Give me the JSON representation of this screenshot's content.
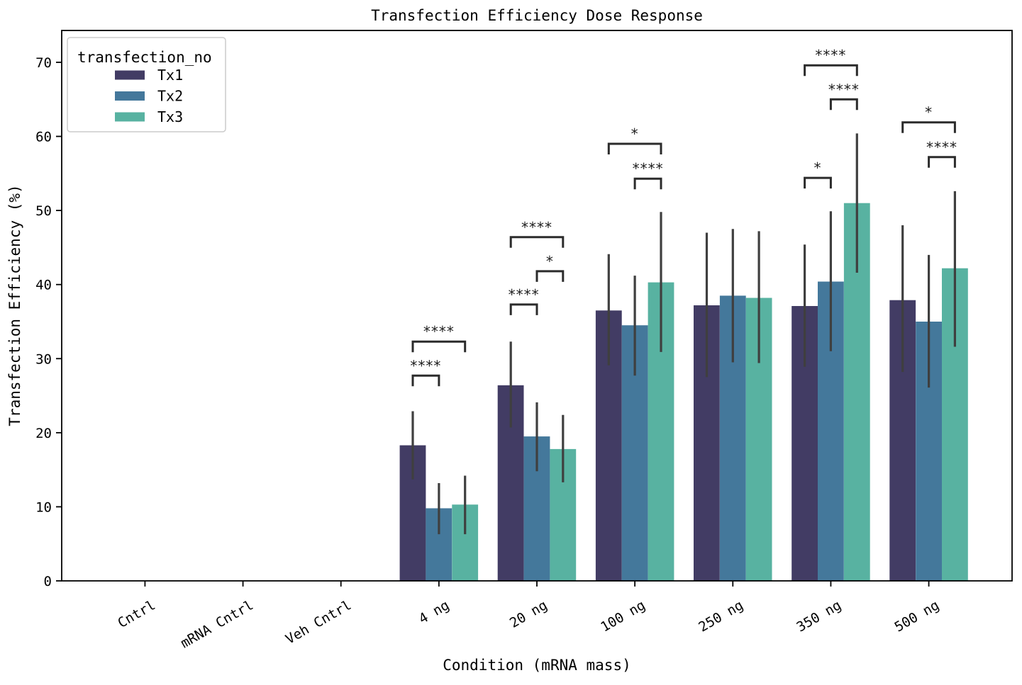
{
  "chart_data": {
    "type": "bar",
    "title": "Transfection Efficiency Dose Response",
    "xlabel": "Condition (mRNA mass)",
    "ylabel": "Transfection Efficiency (%)",
    "categories": [
      "Cntrl",
      "mRNA Cntrl",
      "Veh Cntrl",
      "4 ng",
      "20 ng",
      "100 ng",
      "250 ng",
      "350 ng",
      "500 ng"
    ],
    "xlim": [
      -0.85,
      8.85
    ],
    "ylim": [
      0,
      74.3
    ],
    "yticks": [
      0,
      10,
      20,
      30,
      40,
      50,
      60,
      70
    ],
    "grid": false,
    "bar_group_fraction": 0.8,
    "legend": {
      "title": "transfection_no",
      "position": "upper left"
    },
    "colors": {
      "error_bar": "#3F3F3F",
      "annotation_line": "#2B2B2B",
      "spine": "#000000",
      "legend_border": "#CCCCCC",
      "legend_background": "#FFFFFF"
    },
    "series": [
      {
        "name": "Tx1",
        "color": "#423C64",
        "values": [
          0,
          0,
          0,
          18.3,
          26.4,
          36.5,
          37.2,
          37.1,
          37.9
        ],
        "err_low": [
          null,
          null,
          null,
          13.7,
          20.7,
          29.1,
          27.5,
          28.9,
          28.2
        ],
        "err_high": [
          null,
          null,
          null,
          22.9,
          32.3,
          44.1,
          47.0,
          45.4,
          48.0
        ]
      },
      {
        "name": "Tx2",
        "color": "#44789B",
        "values": [
          0,
          0,
          0,
          9.8,
          19.5,
          34.5,
          38.5,
          40.4,
          35.0
        ],
        "err_low": [
          null,
          null,
          null,
          6.3,
          14.8,
          27.7,
          29.5,
          31.0,
          26.1
        ],
        "err_high": [
          null,
          null,
          null,
          13.2,
          24.1,
          41.2,
          47.5,
          49.9,
          44.0
        ]
      },
      {
        "name": "Tx3",
        "color": "#58B2A1",
        "values": [
          0,
          0,
          0,
          10.3,
          17.8,
          40.3,
          38.2,
          51.0,
          42.2
        ],
        "err_low": [
          null,
          null,
          null,
          6.3,
          13.3,
          30.9,
          29.4,
          41.6,
          31.6
        ],
        "err_high": [
          null,
          null,
          null,
          14.2,
          22.4,
          49.8,
          47.2,
          60.4,
          52.6
        ]
      }
    ],
    "annotations": [
      {
        "category": "4 ng",
        "from": "Tx1",
        "to": "Tx2",
        "label": "****",
        "y": 27.7
      },
      {
        "category": "4 ng",
        "from": "Tx1",
        "to": "Tx3",
        "label": "****",
        "y": 32.3
      },
      {
        "category": "20 ng",
        "from": "Tx1",
        "to": "Tx2",
        "label": "****",
        "y": 37.3
      },
      {
        "category": "20 ng",
        "from": "Tx2",
        "to": "Tx3",
        "label": "*",
        "y": 41.8
      },
      {
        "category": "20 ng",
        "from": "Tx1",
        "to": "Tx3",
        "label": "****",
        "y": 46.4
      },
      {
        "category": "100 ng",
        "from": "Tx2",
        "to": "Tx3",
        "label": "****",
        "y": 54.3
      },
      {
        "category": "100 ng",
        "from": "Tx1",
        "to": "Tx3",
        "label": "*",
        "y": 59.0
      },
      {
        "category": "350 ng",
        "from": "Tx1",
        "to": "Tx2",
        "label": "*",
        "y": 54.4
      },
      {
        "category": "350 ng",
        "from": "Tx2",
        "to": "Tx3",
        "label": "****",
        "y": 65.0
      },
      {
        "category": "350 ng",
        "from": "Tx1",
        "to": "Tx3",
        "label": "****",
        "y": 69.6
      },
      {
        "category": "500 ng",
        "from": "Tx2",
        "to": "Tx3",
        "label": "****",
        "y": 57.2
      },
      {
        "category": "500 ng",
        "from": "Tx1",
        "to": "Tx3",
        "label": "*",
        "y": 61.9
      }
    ]
  }
}
